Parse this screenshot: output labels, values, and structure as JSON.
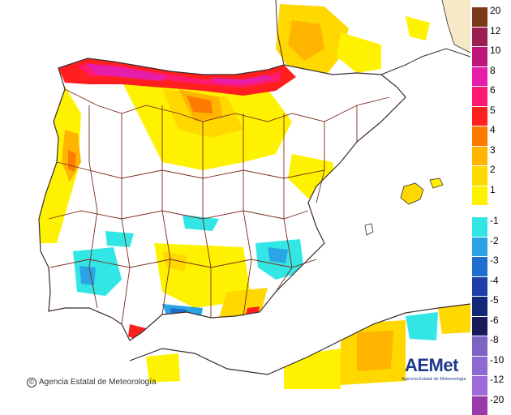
{
  "legend": {
    "labels": [
      "20",
      "12",
      "10",
      "8",
      "6",
      "5",
      "4",
      "3",
      "2",
      "1",
      "-1",
      "-2",
      "-3",
      "-4",
      "-5",
      "-6",
      "-8",
      "-10",
      "-12",
      "-20"
    ],
    "positive_colors": [
      "#7a3a1a",
      "#9a1e4e",
      "#c0167a",
      "#e61eaa",
      "#ff1a6e",
      "#ff1f1f",
      "#ff7a00",
      "#ffb400",
      "#ffd800",
      "#fff200"
    ],
    "negative_colors": [
      "#33e6e6",
      "#2aa4e6",
      "#1f6fd0",
      "#1f3fa8",
      "#14287a",
      "#1a1a5a",
      "#7a64c4",
      "#8c6ad0",
      "#a06ad8",
      "#9a3aa8"
    ]
  },
  "colors": {
    "sea": "#ffffff",
    "land": "#ffffff",
    "boundary": "#7a2a1a",
    "coast": "#3a2a2a"
  },
  "credit": {
    "symbol": "©",
    "text": "Agencia Estatal de Meteorología"
  },
  "logo": {
    "wordmark": "AEMet",
    "subtitle": "Agencia Estatal de Meteorología",
    "icon": "aemet-logo"
  }
}
